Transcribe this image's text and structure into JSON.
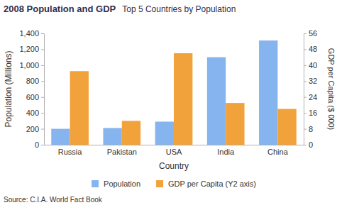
{
  "chart_data": {
    "type": "bar",
    "title": "2008 Population and GDP",
    "subtitle": "Top 5 Countries by Population",
    "x_label": "Country",
    "y_label": "Population (Millions)",
    "y2_label": "GDP per Capita ($ 000)",
    "source": "Source: C.I.A. World Fact Book",
    "categories": [
      "Russia",
      "Pakistan",
      "USA",
      "India",
      "China"
    ],
    "series": [
      {
        "name": "Population",
        "color": "#86b4ee",
        "values": [
          200,
          210,
          290,
          1100,
          1310
        ]
      },
      {
        "name": "GDP per Capita (Y2 axis)",
        "color": "#f2a23a",
        "values": [
          37,
          12,
          46,
          21,
          18
        ],
        "axis": "y2"
      }
    ],
    "ylim": [
      0,
      1400
    ],
    "yticks": [
      0,
      200,
      400,
      600,
      800,
      {
        "value": 1000,
        "label": "1,000"
      },
      {
        "value": 1200,
        "label": "1,200"
      },
      {
        "value": 1400,
        "label": "1,400"
      }
    ],
    "y2lim": [
      0,
      56
    ],
    "y2ticks": [
      0,
      8,
      16,
      24,
      32,
      40,
      48,
      56
    ],
    "grid": false,
    "legend": "bottom"
  }
}
